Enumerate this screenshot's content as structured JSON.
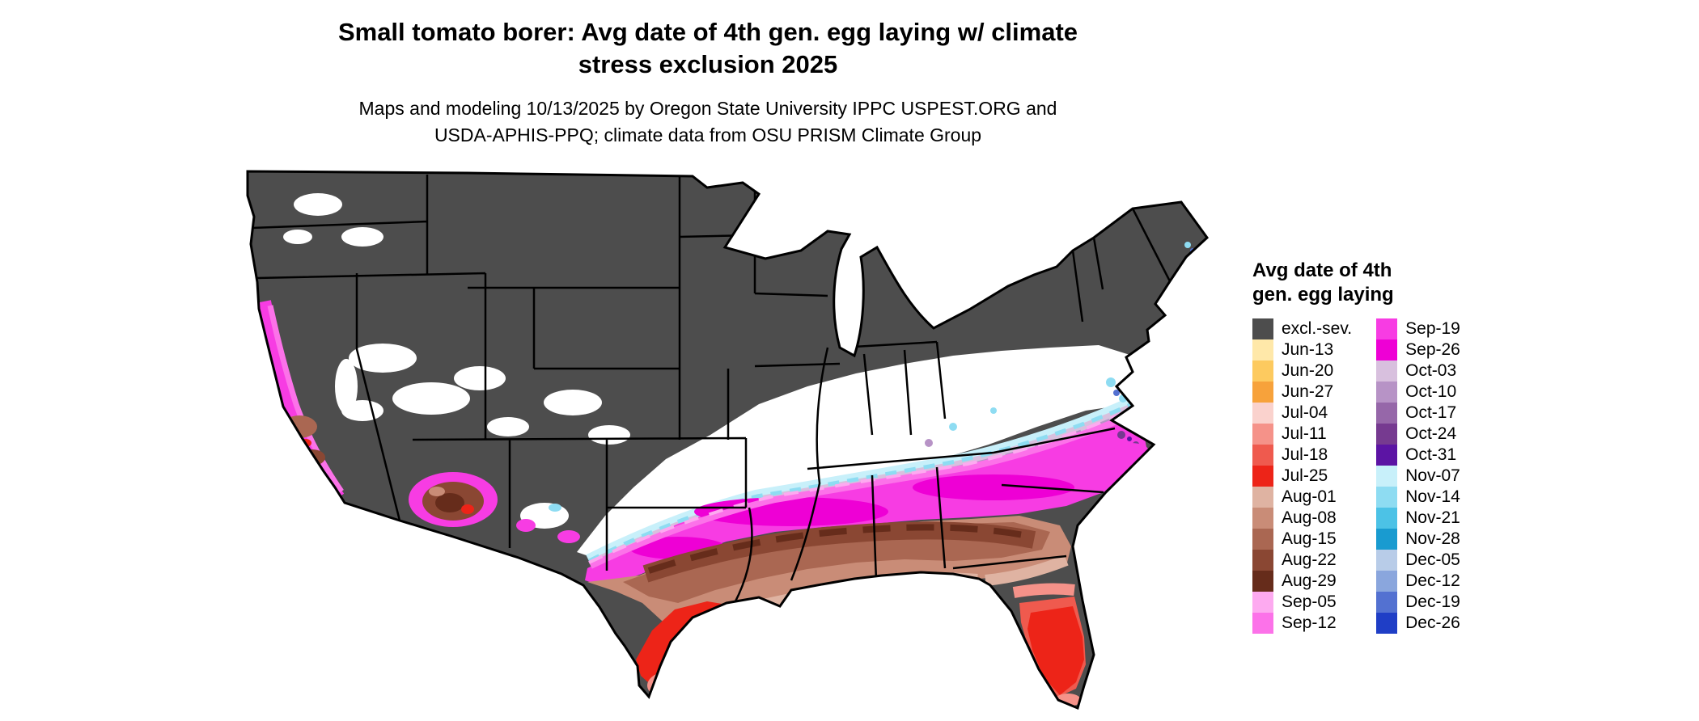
{
  "header": {
    "title": "Small tomato borer: Avg date of 4th gen. egg laying w/ climate\nstress exclusion 2025",
    "subtitle": "Maps and modeling 10/13/2025 by Oregon State University IPPC USPEST.ORG and\nUSDA-APHIS-PPQ; climate data from OSU PRISM Climate Group"
  },
  "legend": {
    "title": "Avg date of 4th\ngen. egg laying",
    "columns": [
      {
        "entries": [
          {
            "label": "excl.-sev.",
            "color": "#4d4d4d"
          },
          {
            "label": "Jun-13",
            "color": "#ffe8a9"
          },
          {
            "label": "Jun-20",
            "color": "#fdca5f"
          },
          {
            "label": "Jun-27",
            "color": "#f7a23b"
          },
          {
            "label": "Jul-04",
            "color": "#fad2cd"
          },
          {
            "label": "Jul-11",
            "color": "#f59289"
          },
          {
            "label": "Jul-18",
            "color": "#ef5a4e"
          },
          {
            "label": "Jul-25",
            "color": "#ed2418"
          },
          {
            "label": "Aug-01",
            "color": "#dfb3a2"
          },
          {
            "label": "Aug-08",
            "color": "#c98c77"
          },
          {
            "label": "Aug-15",
            "color": "#aa6752"
          },
          {
            "label": "Aug-22",
            "color": "#8a4733"
          },
          {
            "label": "Aug-29",
            "color": "#662c1b"
          },
          {
            "label": "Sep-05",
            "color": "#fdaaf0"
          },
          {
            "label": "Sep-12",
            "color": "#fc72e9"
          }
        ]
      },
      {
        "entries": [
          {
            "label": "Sep-19",
            "color": "#f73ce3"
          },
          {
            "label": "Sep-26",
            "color": "#ee00d5"
          },
          {
            "label": "Oct-03",
            "color": "#d8c0de"
          },
          {
            "label": "Oct-10",
            "color": "#b793c6"
          },
          {
            "label": "Oct-17",
            "color": "#9667a9"
          },
          {
            "label": "Oct-24",
            "color": "#763a90"
          },
          {
            "label": "Oct-31",
            "color": "#5c14a4"
          },
          {
            "label": "Nov-07",
            "color": "#c8f0fa"
          },
          {
            "label": "Nov-14",
            "color": "#8edcf2"
          },
          {
            "label": "Nov-21",
            "color": "#4cc2e6"
          },
          {
            "label": "Nov-28",
            "color": "#199bd0"
          },
          {
            "label": "Dec-05",
            "color": "#b8cce8"
          },
          {
            "label": "Dec-12",
            "color": "#8aa6dd"
          },
          {
            "label": "Dec-19",
            "color": "#5371d1"
          },
          {
            "label": "Dec-26",
            "color": "#1f3ec6"
          }
        ]
      }
    ]
  },
  "map": {
    "region_name": "Contiguous United States",
    "extra_colors": {
      "white": "#ffffff",
      "border": "#000000"
    }
  }
}
